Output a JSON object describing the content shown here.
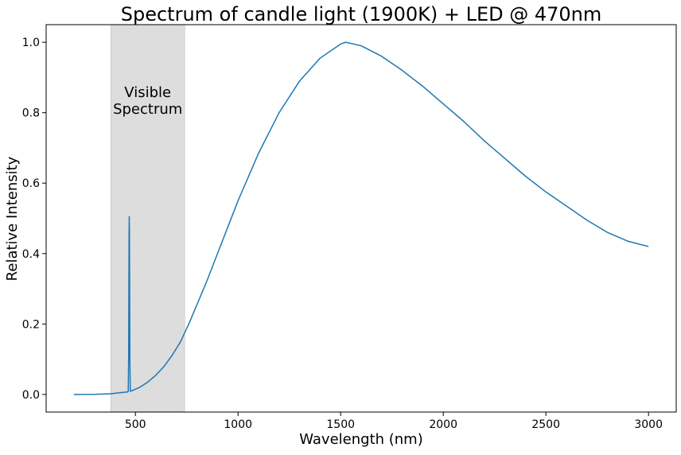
{
  "chart_data": {
    "type": "line",
    "title": "Spectrum of candle light (1900K) + LED @ 470nm",
    "xlabel": "Wavelength (nm)",
    "ylabel": "Relative Intensity",
    "xlim": [
      65,
      3135
    ],
    "ylim": [
      -0.05,
      1.05
    ],
    "x_ticks": [
      500,
      1000,
      1500,
      2000,
      2500,
      3000
    ],
    "x_tick_labels": [
      "500",
      "1000",
      "1500",
      "2000",
      "2500",
      "3000"
    ],
    "y_ticks": [
      0.0,
      0.2,
      0.4,
      0.6,
      0.8,
      1.0
    ],
    "y_tick_labels": [
      "0.0",
      "0.2",
      "0.4",
      "0.6",
      "0.8",
      "1.0"
    ],
    "grid": false,
    "legend": false,
    "series": [
      {
        "color": "#1f77b4",
        "x": [
          200,
          300,
          380,
          440,
          460,
          465,
          467,
          469,
          470,
          471,
          473,
          475,
          480,
          520,
          560,
          600,
          640,
          680,
          720,
          760,
          800,
          850,
          900,
          950,
          1000,
          1100,
          1200,
          1300,
          1400,
          1500,
          1525,
          1600,
          1700,
          1800,
          1900,
          2000,
          2100,
          2200,
          2300,
          2400,
          2500,
          2600,
          2700,
          2800,
          2900,
          3000
        ],
        "y": [
          0.0,
          0.0002,
          0.002,
          0.006,
          0.007,
          0.008,
          0.1,
          0.45,
          0.505,
          0.45,
          0.1,
          0.009,
          0.01,
          0.02,
          0.035,
          0.055,
          0.08,
          0.112,
          0.15,
          0.2,
          0.255,
          0.325,
          0.4,
          0.475,
          0.55,
          0.685,
          0.8,
          0.89,
          0.955,
          0.995,
          1.0,
          0.99,
          0.96,
          0.92,
          0.875,
          0.825,
          0.775,
          0.72,
          0.67,
          0.62,
          0.575,
          0.535,
          0.495,
          0.46,
          0.435,
          0.42
        ]
      }
    ],
    "annotations": [
      {
        "type": "shaded-band",
        "x_range": [
          380,
          740
        ],
        "color": "#dddddd",
        "label": [
          "Visible",
          "Spectrum"
        ]
      }
    ]
  }
}
